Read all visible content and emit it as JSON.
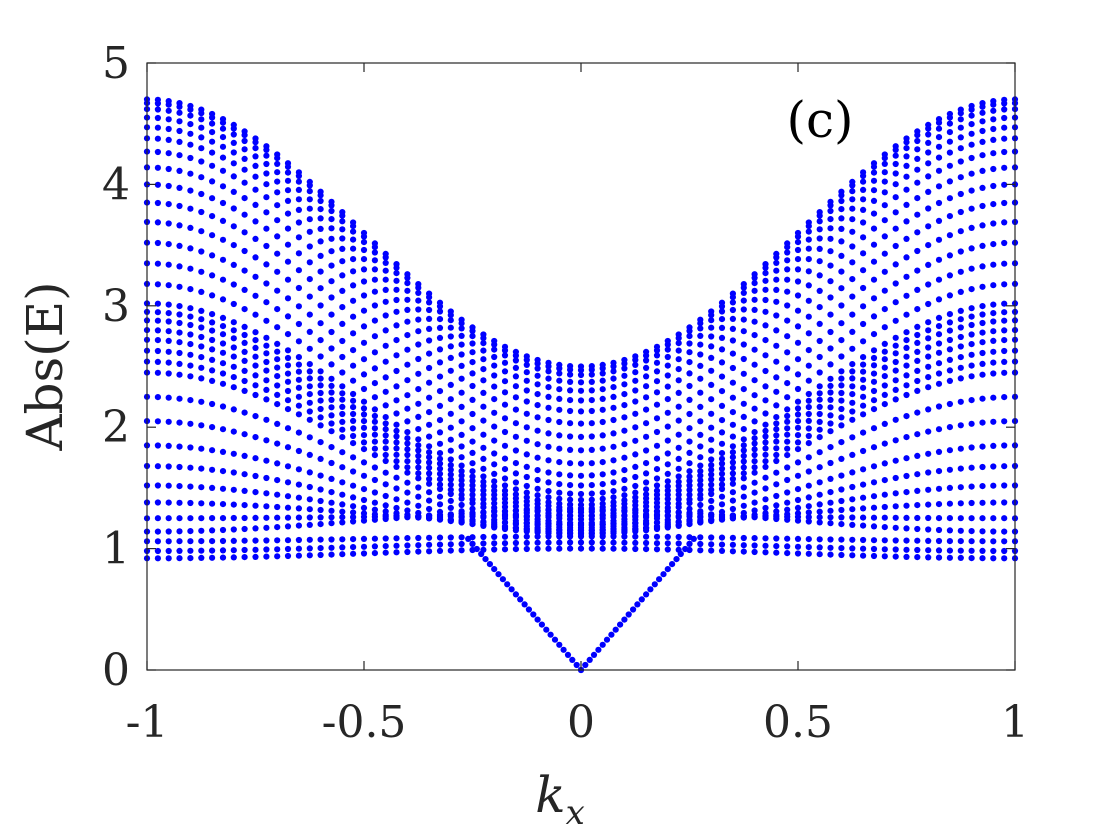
{
  "chart_data": {
    "type": "scatter",
    "title": "",
    "panel_label": "(c)",
    "xlabel_main": "k",
    "xlabel_sub": "x",
    "ylabel": "Abs(E)",
    "xlim": [
      -1,
      1
    ],
    "ylim": [
      0,
      5
    ],
    "xticks": [
      -1,
      -0.5,
      0,
      0.5,
      1
    ],
    "xtick_labels": [
      "-1",
      "-0.5",
      "0",
      "0.5",
      "1"
    ],
    "yticks": [
      0,
      1,
      2,
      3,
      4,
      5
    ],
    "ytick_labels": [
      "0",
      "1",
      "2",
      "3",
      "4",
      "5"
    ],
    "grid": false,
    "marker_color": "#0000ff",
    "x_samples": 81,
    "series": [
      {
        "edge": 4.7,
        "center": 2.5
      },
      {
        "edge": 4.67,
        "center": 2.47
      },
      {
        "edge": 4.62,
        "center": 2.43
      },
      {
        "edge": 4.55,
        "center": 2.37
      },
      {
        "edge": 4.47,
        "center": 2.3
      },
      {
        "edge": 4.38,
        "center": 2.22
      },
      {
        "edge": 4.27,
        "center": 2.13
      },
      {
        "edge": 4.14,
        "center": 2.03
      },
      {
        "edge": 4.0,
        "center": 1.92
      },
      {
        "edge": 3.85,
        "center": 1.81
      },
      {
        "edge": 3.69,
        "center": 1.7
      },
      {
        "edge": 3.52,
        "center": 1.6
      },
      {
        "edge": 3.35,
        "center": 1.52
      },
      {
        "edge": 3.18,
        "center": 1.45
      },
      {
        "edge": 3.02,
        "center": 1.4
      },
      {
        "edge": 2.95,
        "center": 1.36
      },
      {
        "edge": 2.88,
        "center": 1.33
      },
      {
        "edge": 2.8,
        "center": 1.3
      },
      {
        "edge": 2.72,
        "center": 1.27
      },
      {
        "edge": 2.63,
        "center": 1.24
      },
      {
        "edge": 2.54,
        "center": 1.21
      },
      {
        "edge": 2.45,
        "center": 1.19
      },
      {
        "edge": 2.25,
        "center": 1.17
      },
      {
        "edge": 2.05,
        "center": 1.15
      },
      {
        "edge": 1.85,
        "center": 1.13
      },
      {
        "edge": 1.68,
        "center": 1.12
      },
      {
        "edge": 1.52,
        "center": 1.15
      },
      {
        "edge": 1.38,
        "center": 1.2
      },
      {
        "edge": 1.25,
        "center": 1.27
      },
      {
        "edge": 1.14,
        "center": 1.32
      },
      {
        "edge": 1.06,
        "center": 1.1
      },
      {
        "edge": 0.98,
        "center": 1.05
      },
      {
        "edge": 0.92,
        "center": 1.0
      }
    ],
    "edge_states": [
      {
        "x": [
          -0.26,
          0
        ],
        "y": [
          1.08,
          0.0
        ]
      },
      {
        "x": [
          0,
          0.26
        ],
        "y": [
          0.0,
          1.08
        ]
      }
    ]
  }
}
